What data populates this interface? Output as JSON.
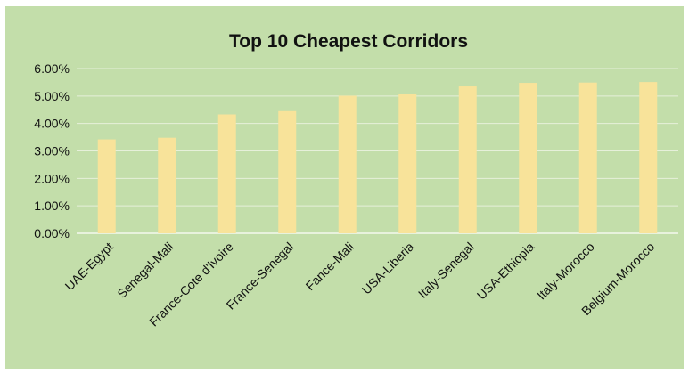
{
  "chart_data": {
    "type": "bar",
    "title": "Top 10 Cheapest Corridors",
    "xlabel": "",
    "ylabel": "",
    "categories": [
      "UAE-Egypt",
      "Senegal-Mali",
      "France-Cote d'Ivoire",
      "France-Senegal",
      "Fance-Mali",
      "USA-Liberia",
      "Italy-Senegal",
      "USA-Ethiopia",
      "Italy-Morocco",
      "Belgium-Morocco"
    ],
    "values": [
      3.42,
      3.48,
      4.33,
      4.45,
      5.01,
      5.06,
      5.35,
      5.48,
      5.49,
      5.51
    ],
    "y_ticks": [
      "0.00%",
      "1.00%",
      "2.00%",
      "3.00%",
      "4.00%",
      "5.00%",
      "6.00%"
    ],
    "ylim": [
      0,
      6
    ],
    "grid": true,
    "legend": "none",
    "colors": {
      "background": "#c3deaa",
      "bar": "#f8e39a",
      "grid": "#e6f0da",
      "axis": "#f4f8ee"
    }
  }
}
